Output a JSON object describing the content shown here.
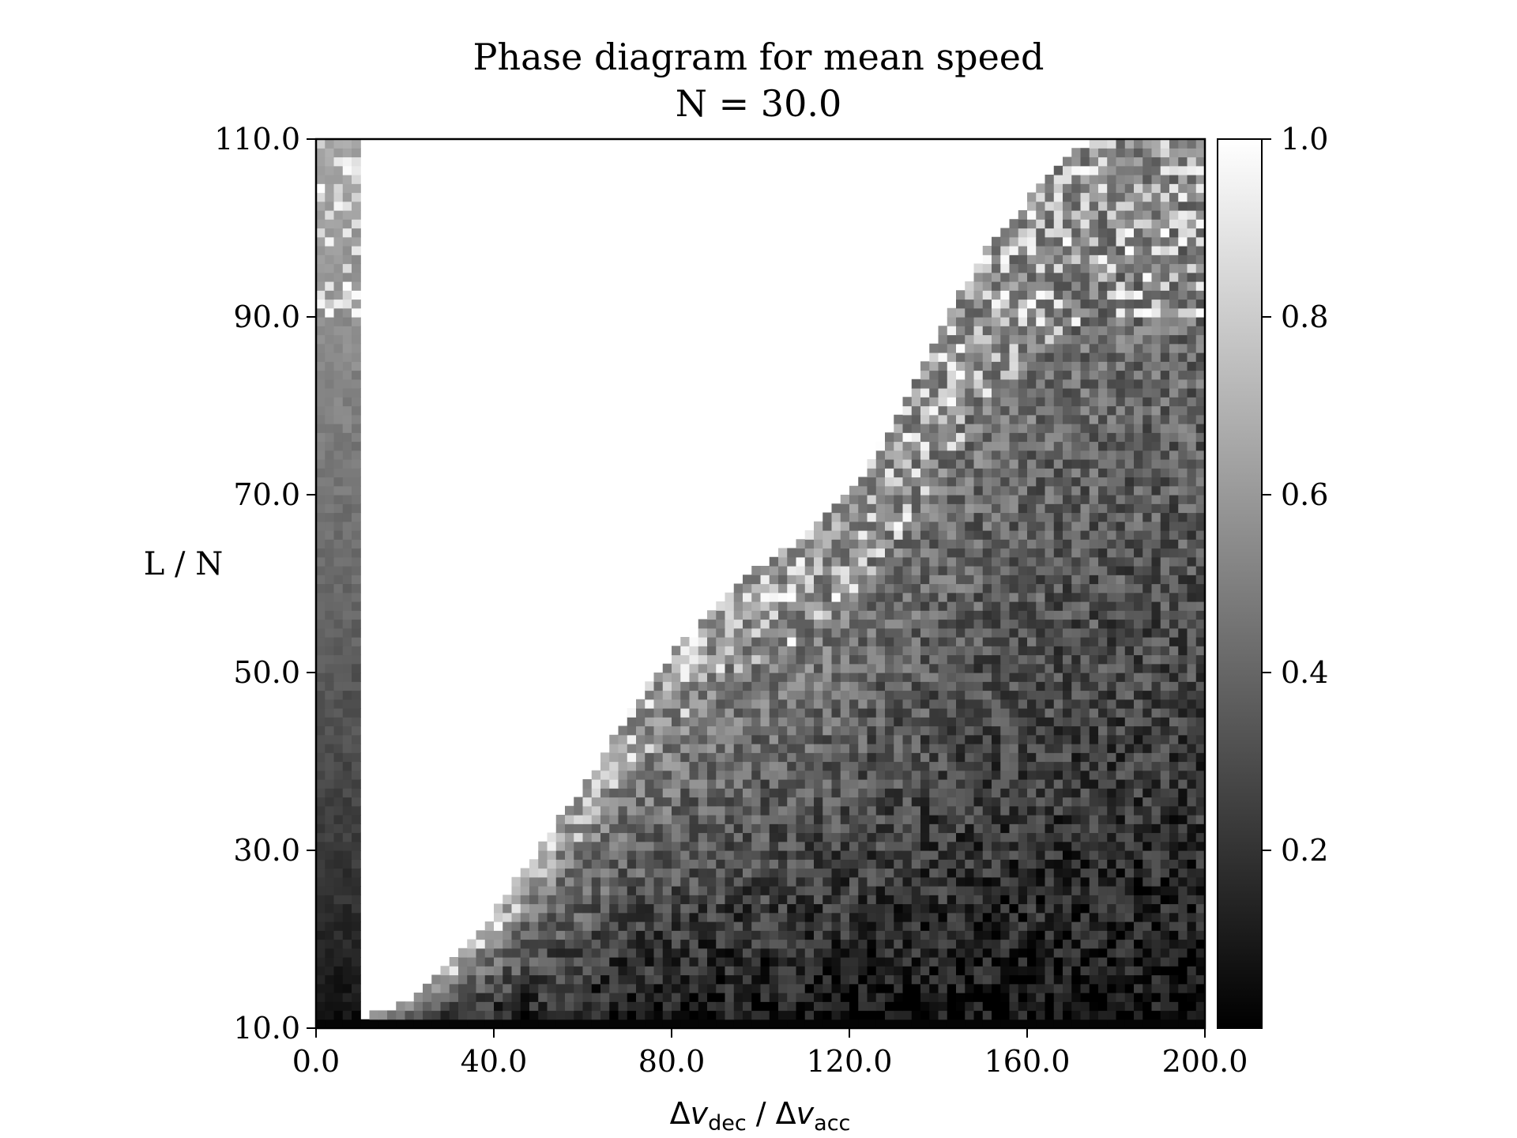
{
  "chart_data": {
    "type": "heatmap",
    "title": "Phase diagram for mean speed",
    "subtitle": "N = 30.0",
    "xlabel": {
      "prefix": "Δ",
      "v1": "v",
      "sub1": "dec",
      "sep": " / Δ",
      "v2": "v",
      "sub2": "acc"
    },
    "ylabel": "L / N",
    "xlim": [
      0,
      200
    ],
    "ylim": [
      10,
      110
    ],
    "x_ticks": [
      "0.0",
      "40.0",
      "80.0",
      "120.0",
      "160.0",
      "200.0"
    ],
    "y_ticks": [
      "10.0",
      "30.0",
      "50.0",
      "70.0",
      "90.0",
      "110.0"
    ],
    "colorbar": {
      "cmap": "gray",
      "range": [
        0,
        1
      ],
      "ticks": [
        "0.2",
        "0.4",
        "0.6",
        "0.8",
        "1.0"
      ]
    },
    "grid": {
      "x_cells": 100,
      "y_cells": 100,
      "region_empty_above_boundary": "L/N ≈ 10 + 0.0017·x^2 (white, value 1.0)",
      "value_trend": "value rises with L/N and falls with Δv_dec/Δv_acc; noisy near boundary"
    },
    "boundary_points": [
      [
        10,
        11
      ],
      [
        20,
        13
      ],
      [
        30,
        17
      ],
      [
        40,
        23
      ],
      [
        50,
        30
      ],
      [
        60,
        37
      ],
      [
        70,
        45
      ],
      [
        80,
        52
      ],
      [
        90,
        58
      ],
      [
        100,
        62
      ],
      [
        110,
        65
      ],
      [
        120,
        70
      ],
      [
        130,
        78
      ],
      [
        140,
        88
      ],
      [
        150,
        97
      ],
      [
        160,
        103
      ],
      [
        170,
        109
      ],
      [
        180,
        110
      ],
      [
        200,
        110
      ]
    ]
  }
}
